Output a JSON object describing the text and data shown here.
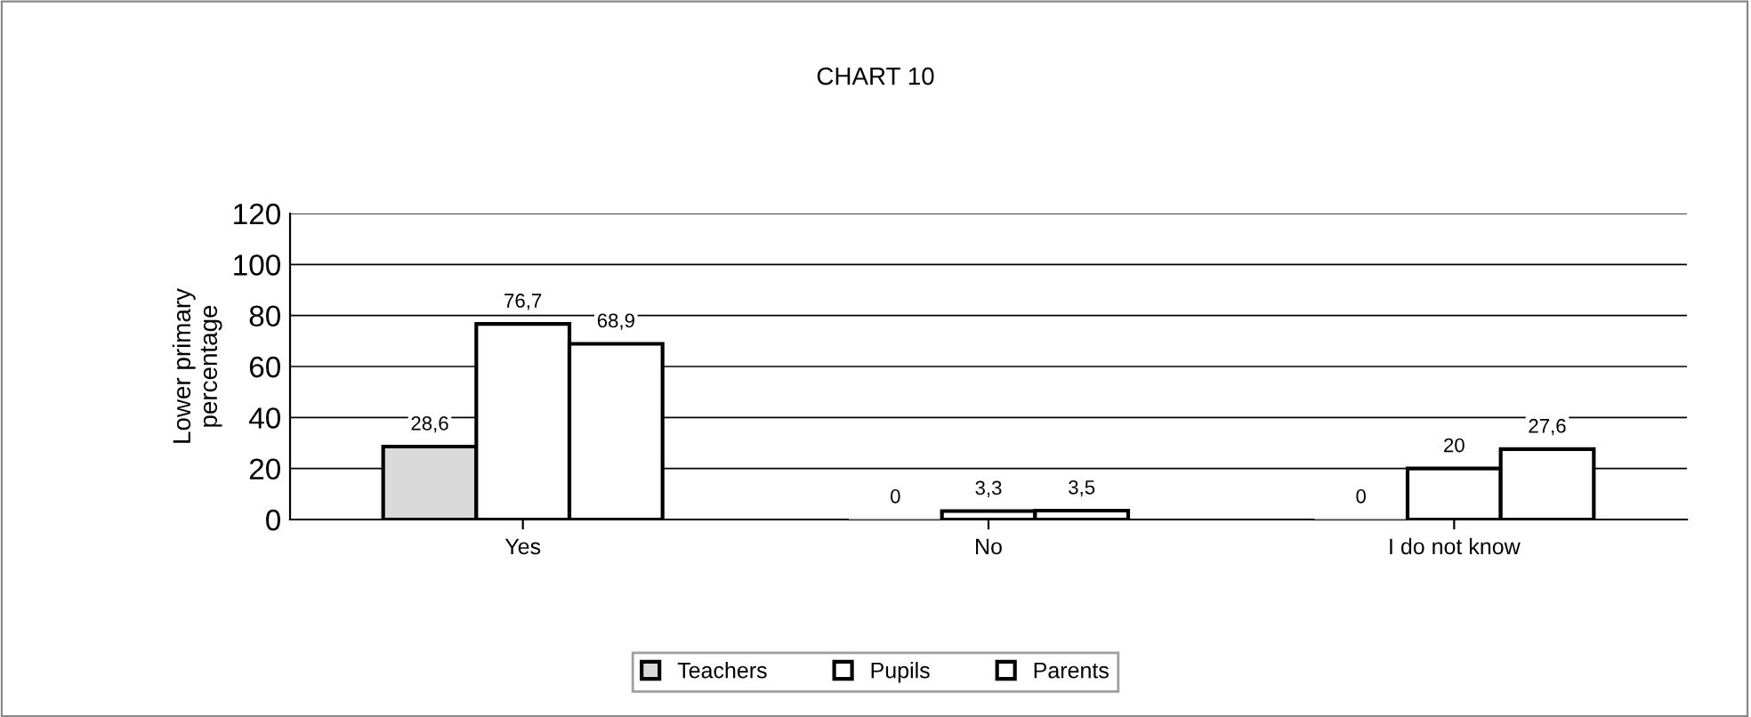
{
  "chart_data": {
    "type": "bar",
    "title": "CHART 10",
    "ylabel": "Lower primary\npercentage",
    "categories": [
      "Yes",
      "No",
      "I do not know"
    ],
    "series": [
      {
        "name": "Teachers",
        "color": "#d9d9d9",
        "values": [
          28.6,
          0,
          0
        ],
        "value_labels": [
          "28,6",
          "0",
          "0"
        ]
      },
      {
        "name": "Pupils",
        "color": "#ffffff",
        "values": [
          76.7,
          3.3,
          20
        ],
        "value_labels": [
          "76,7",
          "3,3",
          "20"
        ]
      },
      {
        "name": "Parents",
        "color": "#ffffff",
        "values": [
          68.9,
          3.5,
          27.6
        ],
        "value_labels": [
          "68,9",
          "3,5",
          "27,6"
        ]
      }
    ],
    "ylim": [
      0,
      120
    ],
    "yticks": [
      0,
      20,
      40,
      60,
      80,
      100,
      120
    ],
    "grid": "y",
    "legend": "bottom"
  }
}
